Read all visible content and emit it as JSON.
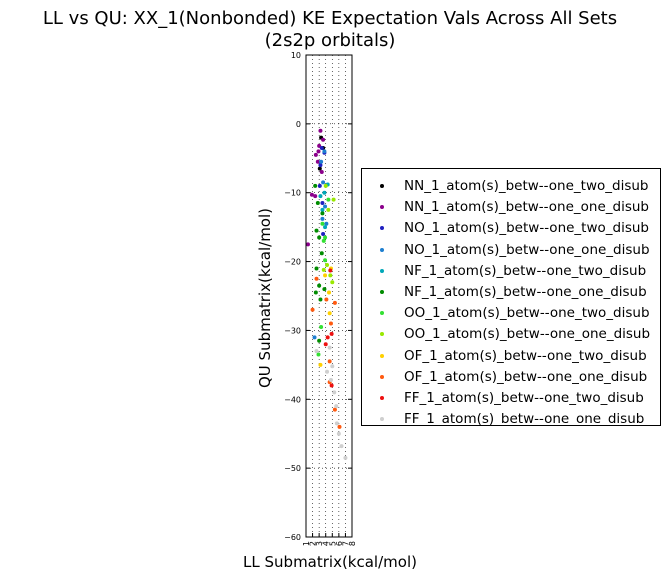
{
  "chart_data": {
    "type": "scatter",
    "title_lines": [
      "LL vs QU: XX_1(Nonbonded) KE Expectation Vals Across All Sets",
      "(2s2p orbitals)"
    ],
    "xlabel": "LL Submatrix(kcal/mol)",
    "ylabel": "QU Submatrix(kcal/mol)",
    "xlim": [
      1,
      8
    ],
    "ylim": [
      -60,
      10
    ],
    "xticks": [
      "1",
      "2",
      "3",
      "4",
      "5",
      "6",
      "7",
      "8"
    ],
    "yticks": [
      "10",
      "0",
      "−10",
      "−20",
      "−30",
      "−40",
      "−50",
      "−60"
    ],
    "ytick_values": [
      10,
      0,
      -10,
      -20,
      -30,
      -40,
      -50,
      -60
    ],
    "grid": true,
    "legend_position": "right, outside",
    "series": [
      {
        "name": "NN_1_atom(s)_betw--one_two_disub",
        "color": "#000000",
        "points": [
          [
            3.3,
            -2.0
          ],
          [
            3.6,
            -3.5
          ],
          [
            3.1,
            -6.5
          ]
        ]
      },
      {
        "name": "NN_1_atom(s)_betw--one_one_disub",
        "color": "#8b008b",
        "points": [
          [
            3.2,
            -1.0
          ],
          [
            3.6,
            -2.3
          ],
          [
            3.0,
            -3.2
          ],
          [
            2.5,
            -4.5
          ],
          [
            2.8,
            -5.5
          ],
          [
            1.9,
            -10.3
          ],
          [
            2.4,
            -10.5
          ],
          [
            3.4,
            -7.0
          ],
          [
            1.3,
            -17.5
          ],
          [
            2.9,
            -4.0
          ]
        ]
      },
      {
        "name": "NO_1_atom(s)_betw--one_two_disub",
        "color": "#2020c0",
        "points": [
          [
            3.4,
            -3.5
          ],
          [
            3.8,
            -4.2
          ],
          [
            3.2,
            -6.0
          ],
          [
            3.5,
            -11.5
          ],
          [
            3.6,
            -16.0
          ],
          [
            3.1,
            -9.0
          ]
        ]
      },
      {
        "name": "NO_1_atom(s)_betw--one_one_disub",
        "color": "#1e7fd0",
        "points": [
          [
            3.8,
            -4.0
          ],
          [
            3.3,
            -5.5
          ],
          [
            3.6,
            -8.5
          ],
          [
            3.9,
            -12.0
          ],
          [
            4.1,
            -14.5
          ],
          [
            3.5,
            -13.8
          ],
          [
            2.3,
            -31.0
          ]
        ]
      },
      {
        "name": "NF_1_atom(s)_betw--one_two_disub",
        "color": "#00a8b8",
        "points": [
          [
            3.5,
            -12.5
          ],
          [
            3.9,
            -15.0
          ],
          [
            3.8,
            -10.0
          ],
          [
            4.3,
            -8.8
          ],
          [
            3.2,
            -10.5
          ]
        ]
      },
      {
        "name": "NF_1_atom(s)_betw--one_one_disub",
        "color": "#008c00",
        "points": [
          [
            2.8,
            -11.5
          ],
          [
            2.6,
            -15.5
          ],
          [
            3.0,
            -16.5
          ],
          [
            3.4,
            -18.8
          ],
          [
            2.6,
            -21.0
          ],
          [
            3.0,
            -23.5
          ],
          [
            2.5,
            -24.5
          ],
          [
            3.2,
            -25.5
          ],
          [
            3.8,
            -24.0
          ],
          [
            2.4,
            -9.0
          ],
          [
            3.5,
            -13.0
          ],
          [
            3.0,
            -31.5
          ]
        ]
      },
      {
        "name": "OO_1_atom(s)_betw--one_two_disub",
        "color": "#33e033",
        "points": [
          [
            3.7,
            -17.0
          ],
          [
            3.9,
            -19.8
          ],
          [
            3.3,
            -29.5
          ],
          [
            2.9,
            -33.5
          ],
          [
            3.5,
            -14.5
          ],
          [
            3.9,
            -16.5
          ],
          [
            4.4,
            -11.0
          ]
        ]
      },
      {
        "name": "OO_1_atom(s)_betw--one_one_disub",
        "color": "#99e800",
        "points": [
          [
            4.2,
            -20.5
          ],
          [
            4.7,
            -22.0
          ],
          [
            5.0,
            -23.0
          ],
          [
            3.7,
            -21.2
          ],
          [
            5.2,
            -11.0
          ],
          [
            4.4,
            -12.5
          ],
          [
            4.0,
            -9.0
          ]
        ]
      },
      {
        "name": "OF_1_atom(s)_betw--one_two_disub",
        "color": "#ffd000",
        "points": [
          [
            3.9,
            -22.0
          ],
          [
            4.5,
            -24.5
          ],
          [
            3.2,
            -35.0
          ],
          [
            4.6,
            -27.5
          ],
          [
            4.8,
            -21.0
          ]
        ]
      },
      {
        "name": "OF_1_atom(s)_betw--one_one_disub",
        "color": "#ff5a10",
        "points": [
          [
            4.1,
            -25.5
          ],
          [
            4.8,
            -29.0
          ],
          [
            4.6,
            -34.5
          ],
          [
            5.4,
            -26.0
          ],
          [
            4.6,
            -37.5
          ],
          [
            5.4,
            -41.5
          ],
          [
            2.0,
            -27.0
          ],
          [
            6.1,
            -44.0
          ],
          [
            2.6,
            -22.5
          ]
        ]
      },
      {
        "name": "FF_1_atom(s)_betw--one_two_disub",
        "color": "#ee1010",
        "points": [
          [
            4.3,
            -31.0
          ],
          [
            4.9,
            -38.0
          ],
          [
            4.7,
            -21.3
          ],
          [
            4.9,
            -30.5
          ],
          [
            4.0,
            -32.0
          ]
        ]
      },
      {
        "name": "FF_1_atom(s)_betw--one_one_disub",
        "color": "#cfcfcf",
        "points": [
          [
            4.2,
            -36.0
          ],
          [
            4.8,
            -37.2
          ],
          [
            5.3,
            -39.0
          ],
          [
            5.6,
            -41.0
          ],
          [
            6.0,
            -45.0
          ],
          [
            6.4,
            -46.8
          ],
          [
            7.0,
            -48.5
          ],
          [
            4.6,
            -32.5
          ],
          [
            5.0,
            -35.2
          ],
          [
            5.7,
            -43.5
          ],
          [
            2.6,
            -33.0
          ]
        ]
      }
    ]
  }
}
